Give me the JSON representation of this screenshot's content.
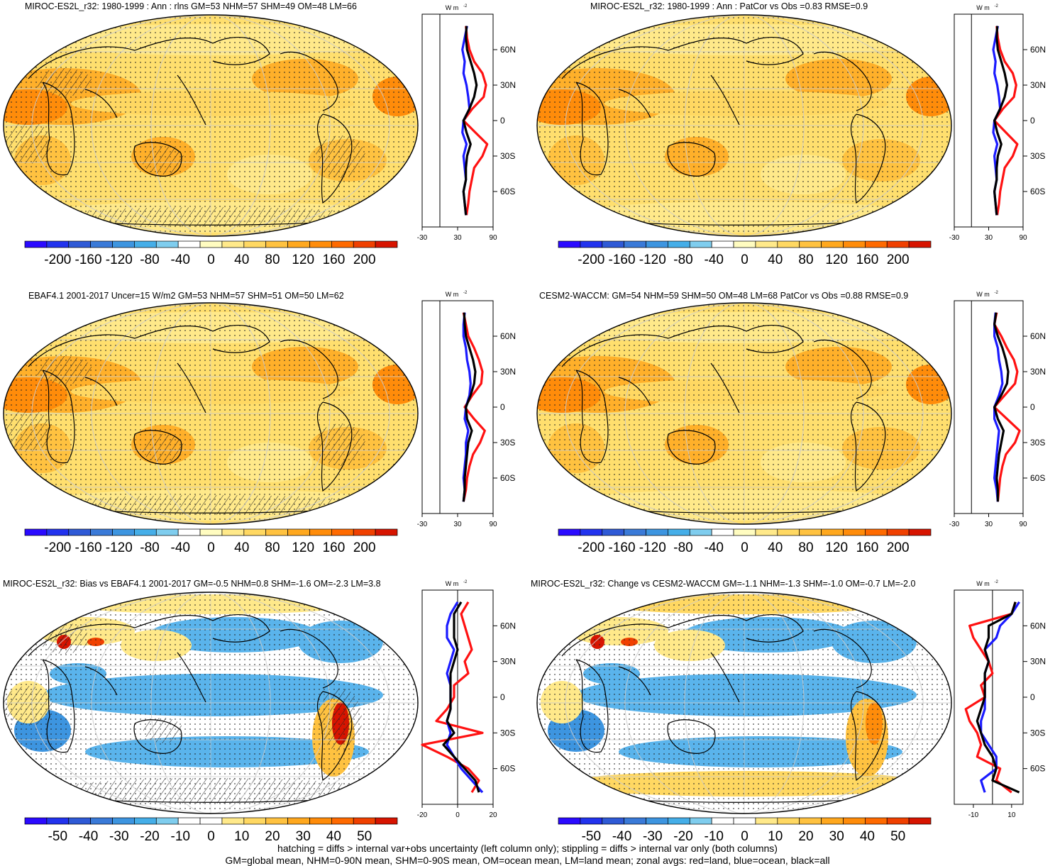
{
  "footer": {
    "line1": "hatching = diffs > internal var+obs uncertainty (left column only); stippling = diffs > internal var only (both columns)",
    "line2": "GM=global mean, NHM=0-90N mean, SHM=0-90S mean, OM=ocean mean, LM=land mean; zonal avgs: red=land, blue=ocean, black=all"
  },
  "colors": {
    "land_line": "#ff1111",
    "ocean_line": "#1a1aff",
    "all_line": "#000000",
    "abs_palette": [
      "#2a0aff",
      "#2233ee",
      "#2f5ad6",
      "#3a7ad8",
      "#3d95e0",
      "#45aee8",
      "#7fcdee",
      "#ffffff",
      "#fffcc0",
      "#ffe98a",
      "#ffd862",
      "#ffc240",
      "#ffa81e",
      "#ff8c0a",
      "#ff6a00",
      "#f04000",
      "#d71400"
    ],
    "bias_palette": [
      "#2a0aff",
      "#2233ee",
      "#2f5ad6",
      "#3a7ad8",
      "#3d95e0",
      "#45aee8",
      "#7fcdee",
      "#ffffff",
      "#ffffff",
      "#ffe98a",
      "#ffd862",
      "#ffc240",
      "#ffa81e",
      "#ff8c0a",
      "#ff6a00",
      "#f04000",
      "#d71400"
    ]
  },
  "chart_data": [
    {
      "type": "heatmap",
      "id": "p1",
      "title": "MIROC-ES2L_r32: 1980-1999 : Ann : rlns GM=53 NHM=57 SHM=49 OM=48 LM=66",
      "colorbar_ticks": [
        "-200",
        "-160",
        "-120",
        "-80",
        "-40",
        "0",
        "40",
        "80",
        "120",
        "160",
        "200"
      ],
      "stats": {
        "GM": 53,
        "NHM": 57,
        "SHM": 49,
        "OM": 48,
        "LM": 66
      },
      "zonal": {
        "unit_label": "W m",
        "x_ticks": [
          -30,
          30,
          90
        ],
        "x_range": [
          -30,
          90
        ],
        "lat_ticks": [
          "60N",
          "30N",
          "0",
          "30S",
          "60S"
        ],
        "ref_x": 0,
        "lat": [
          80,
          70,
          60,
          50,
          40,
          30,
          20,
          10,
          0,
          -10,
          -20,
          -30,
          -40,
          -50,
          -60,
          -70,
          -80
        ],
        "land": [
          44,
          46,
          50,
          58,
          72,
          78,
          74,
          55,
          40,
          60,
          80,
          72,
          58,
          54,
          50,
          48,
          45
        ],
        "ocean": [
          46,
          42,
          38,
          42,
          40,
          45,
          48,
          50,
          40,
          38,
          45,
          40,
          42,
          44,
          40,
          42,
          44
        ],
        "all": [
          45,
          44,
          46,
          52,
          58,
          62,
          58,
          50,
          40,
          45,
          52,
          46,
          44,
          44,
          40,
          42,
          44
        ]
      }
    },
    {
      "type": "heatmap",
      "id": "p2",
      "title": "MIROC-ES2L_r32: 1980-1999 : Ann : PatCor vs Obs =0.83 RMSE=0.9",
      "colorbar_ticks": [
        "-200",
        "-160",
        "-120",
        "-80",
        "-40",
        "0",
        "40",
        "80",
        "120",
        "160",
        "200"
      ],
      "stats": {
        "PatCor": 0.83,
        "RMSE": 0.9
      },
      "zonal": {
        "unit_label": "W m",
        "x_ticks": [
          -30,
          30,
          90
        ],
        "x_range": [
          -30,
          90
        ],
        "lat_ticks": [
          "60N",
          "30N",
          "0",
          "30S",
          "60S"
        ],
        "ref_x": 0,
        "lat": [
          80,
          70,
          60,
          50,
          40,
          30,
          20,
          10,
          0,
          -10,
          -20,
          -30,
          -40,
          -50,
          -60,
          -70,
          -80
        ],
        "land": [
          44,
          46,
          50,
          58,
          72,
          78,
          74,
          55,
          40,
          60,
          80,
          72,
          58,
          54,
          50,
          48,
          45
        ],
        "ocean": [
          46,
          42,
          38,
          42,
          40,
          45,
          48,
          50,
          40,
          38,
          45,
          40,
          42,
          44,
          40,
          42,
          44
        ],
        "all": [
          45,
          44,
          46,
          52,
          58,
          62,
          58,
          50,
          40,
          45,
          52,
          46,
          44,
          44,
          40,
          42,
          44
        ]
      }
    },
    {
      "type": "heatmap",
      "id": "p3",
      "title": "EBAF4.1 2001-2017 Uncer=15 W/m2 GM=53 NHM=57 SHM=51 OM=50 LM=62",
      "colorbar_ticks": [
        "-200",
        "-160",
        "-120",
        "-80",
        "-40",
        "0",
        "40",
        "80",
        "120",
        "160",
        "200"
      ],
      "stats": {
        "GM": 53,
        "NHM": 57,
        "SHM": 51,
        "OM": 50,
        "LM": 62
      },
      "zonal": {
        "unit_label": "W m",
        "x_ticks": [
          -30,
          30,
          90
        ],
        "x_range": [
          -30,
          90
        ],
        "lat_ticks": [
          "60N",
          "30N",
          "0",
          "30S",
          "60S"
        ],
        "ref_x": 0,
        "lat": [
          80,
          70,
          60,
          50,
          40,
          30,
          20,
          10,
          0,
          -10,
          -20,
          -30,
          -40,
          -50,
          -60,
          -70,
          -80
        ],
        "land": [
          40,
          44,
          48,
          58,
          66,
          72,
          70,
          55,
          42,
          58,
          76,
          68,
          56,
          50,
          46,
          44,
          40
        ],
        "ocean": [
          42,
          40,
          40,
          44,
          46,
          50,
          52,
          50,
          44,
          42,
          48,
          44,
          44,
          42,
          40,
          42,
          40
        ],
        "all": [
          41,
          42,
          44,
          50,
          56,
          60,
          58,
          52,
          44,
          46,
          54,
          48,
          46,
          44,
          42,
          42,
          40
        ]
      }
    },
    {
      "type": "heatmap",
      "id": "p4",
      "title": "CESM2-WACCM: GM=54 NHM=59 SHM=50 OM=48 LM=68 PatCor vs Obs =0.88 RMSE=0.9",
      "colorbar_ticks": [
        "-200",
        "-160",
        "-120",
        "-80",
        "-40",
        "0",
        "40",
        "80",
        "120",
        "160",
        "200"
      ],
      "stats": {
        "GM": 54,
        "NHM": 59,
        "SHM": 50,
        "OM": 48,
        "LM": 68,
        "PatCor": 0.88,
        "RMSE": 0.9
      },
      "zonal": {
        "unit_label": "W m",
        "x_ticks": [
          -30,
          30,
          90
        ],
        "x_range": [
          -30,
          90
        ],
        "lat_ticks": [
          "60N",
          "30N",
          "0",
          "30S",
          "60S"
        ],
        "ref_x": 0,
        "lat": [
          80,
          70,
          60,
          50,
          40,
          30,
          20,
          10,
          0,
          -10,
          -20,
          -30,
          -40,
          -50,
          -60,
          -70,
          -80
        ],
        "land": [
          44,
          40,
          52,
          62,
          74,
          80,
          76,
          58,
          40,
          62,
          84,
          76,
          60,
          54,
          50,
          48,
          46
        ],
        "ocean": [
          42,
          40,
          40,
          46,
          48,
          52,
          54,
          48,
          40,
          40,
          48,
          46,
          44,
          42,
          40,
          44,
          46
        ],
        "all": [
          43,
          40,
          46,
          54,
          60,
          64,
          62,
          52,
          40,
          46,
          56,
          52,
          48,
          46,
          44,
          46,
          46
        ]
      }
    },
    {
      "type": "heatmap",
      "id": "p5",
      "title": "MIROC-ES2L_r32: Bias vs EBAF4.1 2001-2017 GM=-0.5 NHM=0.8 SHM=-1.6 OM=-2.3 LM=3.8",
      "colorbar_ticks": [
        "-50",
        "-40",
        "-30",
        "-20",
        "-10",
        "0",
        "10",
        "20",
        "30",
        "40",
        "50"
      ],
      "stats": {
        "GM": -0.5,
        "NHM": 0.8,
        "SHM": -1.6,
        "OM": -2.3,
        "LM": 3.8
      },
      "zonal": {
        "unit_label": "W m",
        "x_ticks": [
          -20,
          0,
          20
        ],
        "x_range": [
          -20,
          20
        ],
        "lat_ticks": [
          "60N",
          "30N",
          "0",
          "30S",
          "60S"
        ],
        "ref_x": 0,
        "lat": [
          80,
          70,
          60,
          50,
          40,
          30,
          20,
          10,
          0,
          -10,
          -20,
          -30,
          -40,
          -50,
          -60,
          -70,
          -80
        ],
        "land": [
          6,
          2,
          4,
          6,
          8,
          4,
          6,
          -2,
          -2,
          -6,
          -12,
          14,
          -20,
          -6,
          6,
          12,
          8
        ],
        "ocean": [
          0,
          -4,
          -6,
          -6,
          -2,
          -4,
          -6,
          -4,
          -4,
          -4,
          -6,
          -4,
          -6,
          -2,
          2,
          8,
          14
        ],
        "all": [
          2,
          -2,
          -2,
          -2,
          0,
          -2,
          -4,
          -4,
          -4,
          -4,
          -6,
          -2,
          -8,
          -2,
          4,
          10,
          12
        ]
      }
    },
    {
      "type": "heatmap",
      "id": "p6",
      "title": "MIROC-ES2L_r32: Change vs CESM2-WACCM GM=-1.1 NHM=-1.3 SHM=-1.0 OM=-0.7 LM=-2.0",
      "colorbar_ticks": [
        "-50",
        "-40",
        "-30",
        "-20",
        "-10",
        "0",
        "10",
        "20",
        "30",
        "40",
        "50"
      ],
      "stats": {
        "GM": -1.1,
        "NHM": -1.3,
        "SHM": -1.0,
        "OM": -0.7,
        "LM": -2.0
      },
      "zonal": {
        "unit_label": "W m",
        "x_ticks": [
          -10,
          10
        ],
        "x_range": [
          -20,
          16
        ],
        "lat_ticks": [
          "60N",
          "30N",
          "0",
          "30S",
          "60S"
        ],
        "ref_x": 0,
        "lat": [
          80,
          70,
          60,
          50,
          40,
          30,
          20,
          10,
          0,
          -10,
          -20,
          -30,
          -40,
          -50,
          -60,
          -70,
          -80
        ],
        "land": [
          12,
          10,
          -12,
          -10,
          -6,
          -2,
          0,
          -6,
          -4,
          -14,
          -12,
          -8,
          -6,
          -8,
          4,
          2,
          10
        ],
        "ocean": [
          14,
          10,
          4,
          2,
          -4,
          -2,
          -4,
          -4,
          -4,
          -4,
          -6,
          -6,
          -2,
          2,
          2,
          -6,
          -4
        ],
        "all": [
          12,
          10,
          -2,
          -2,
          -4,
          -2,
          -4,
          -4,
          -4,
          -6,
          -8,
          -6,
          -4,
          0,
          2,
          0,
          14
        ]
      }
    }
  ]
}
